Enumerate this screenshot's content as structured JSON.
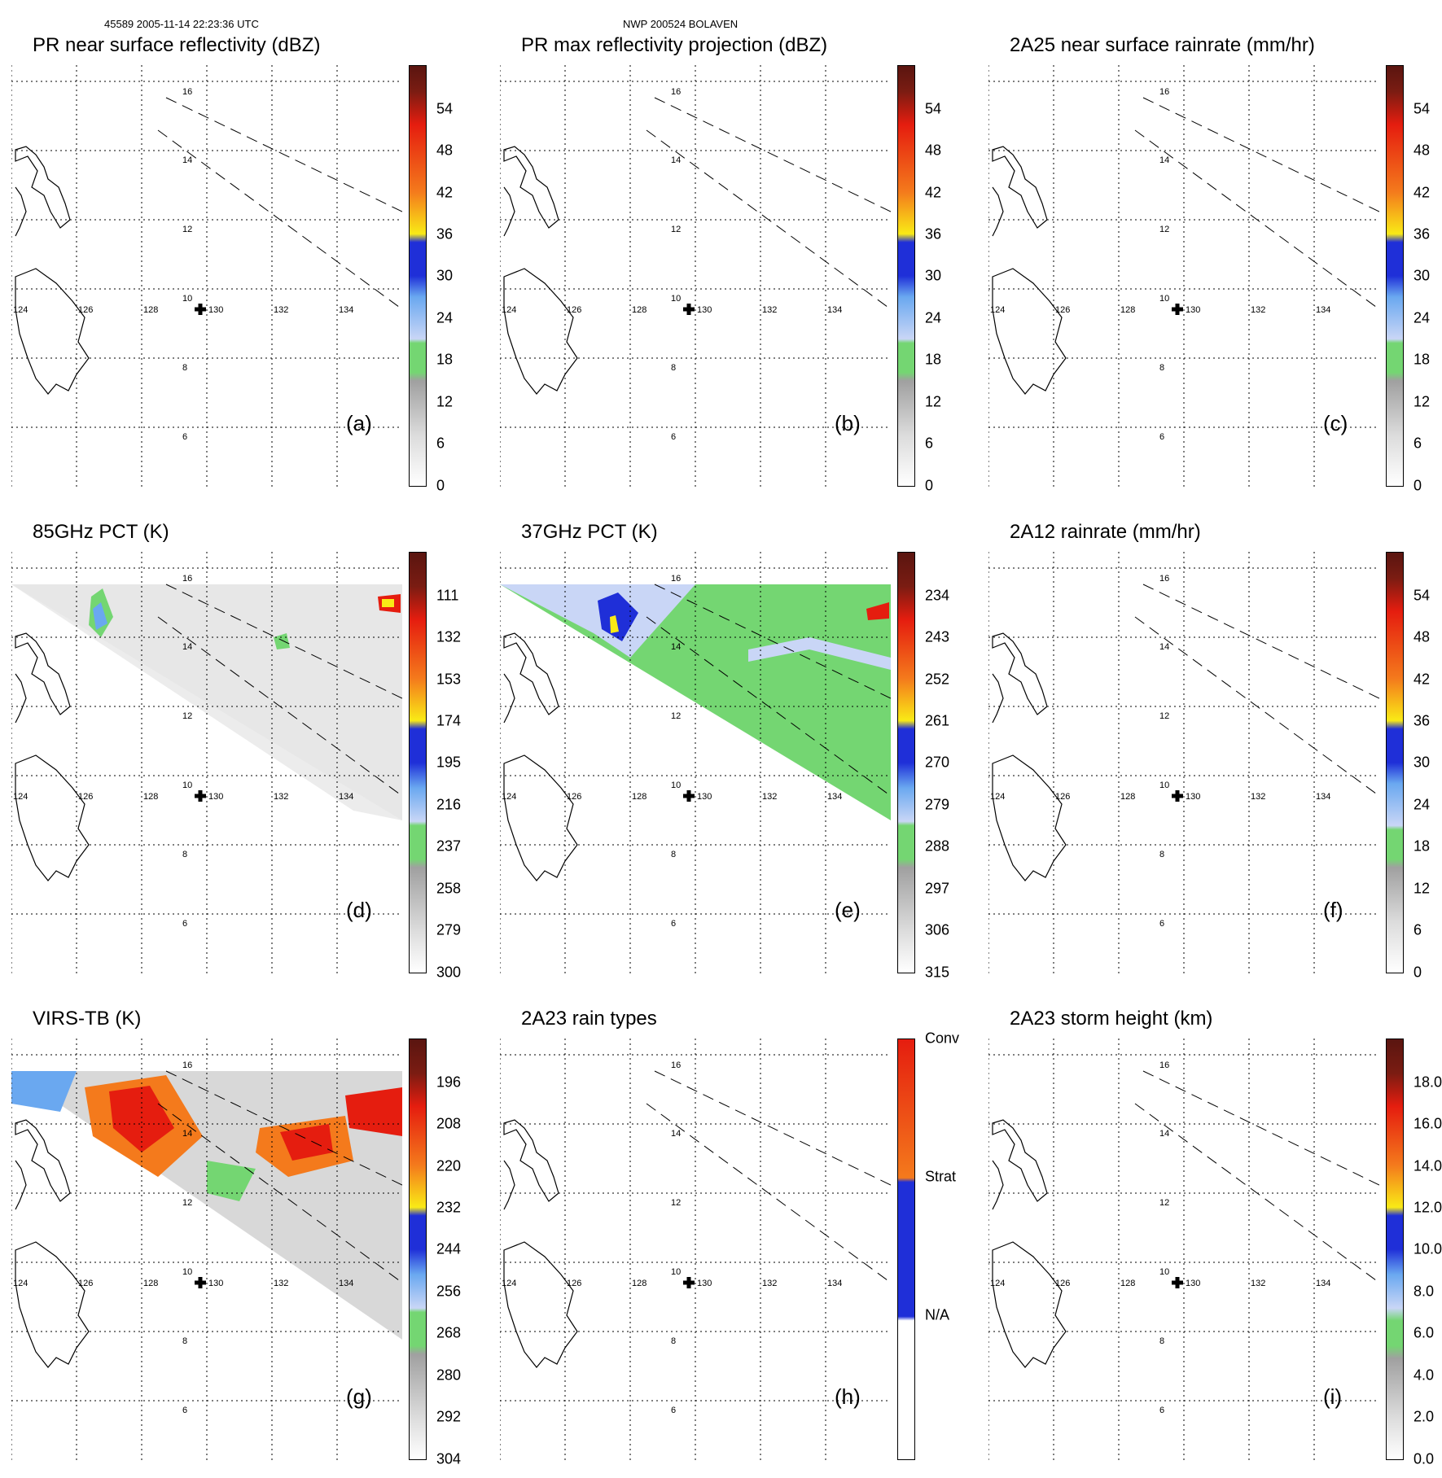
{
  "header": {
    "orbit": "45589 2005-11-14 22:23:36 UTC",
    "storm": "NWP 200524 BOLAVEN"
  },
  "colors": {
    "dark_red": "#7a1c12",
    "red": "#e51d0f",
    "orange": "#f47a1c",
    "yellow": "#f9ea16",
    "blue": "#1f2fd8",
    "light_blue": "#6aa8f0",
    "pale_blue": "#c9d6f6",
    "green": "#74d672",
    "gray": "#a0a0a0",
    "light_gray": "#dcdcdc"
  },
  "map": {
    "lon_labels": [
      "124",
      "126",
      "128",
      "130",
      "132",
      "134"
    ],
    "lat_labels": [
      "16",
      "14",
      "12",
      "10",
      "8",
      "6"
    ]
  },
  "panels": [
    {
      "id": "a",
      "title": "PR near surface reflectivity (dBZ)",
      "label": "(a)",
      "colorbar": {
        "type": "dbz",
        "ticks": [
          "54",
          "48",
          "42",
          "36",
          "30",
          "24",
          "18",
          "12",
          "6",
          "0"
        ]
      }
    },
    {
      "id": "b",
      "title": "PR max reflectivity projection (dBZ)",
      "label": "(b)",
      "colorbar": {
        "type": "dbz",
        "ticks": [
          "54",
          "48",
          "42",
          "36",
          "30",
          "24",
          "18",
          "12",
          "6",
          "0"
        ]
      }
    },
    {
      "id": "c",
      "title": "2A25 near surface rainrate (mm/hr)",
      "label": "(c)",
      "colorbar": {
        "type": "rain",
        "ticks": [
          "54",
          "48",
          "42",
          "36",
          "30",
          "24",
          "18",
          "12",
          "6",
          "0"
        ]
      }
    },
    {
      "id": "d",
      "title": "85GHz PCT (K)",
      "label": "(d)",
      "colorbar": {
        "type": "pct",
        "ticks": [
          "111",
          "132",
          "153",
          "174",
          "195",
          "216",
          "237",
          "258",
          "279",
          "300"
        ]
      }
    },
    {
      "id": "e",
      "title": "37GHz PCT (K)",
      "label": "(e)",
      "colorbar": {
        "type": "pct",
        "ticks": [
          "234",
          "243",
          "252",
          "261",
          "270",
          "279",
          "288",
          "297",
          "306",
          "315"
        ]
      }
    },
    {
      "id": "f",
      "title": "2A12 rainrate (mm/hr)",
      "label": "(f)",
      "colorbar": {
        "type": "rain",
        "ticks": [
          "54",
          "48",
          "42",
          "36",
          "30",
          "24",
          "18",
          "12",
          "6",
          "0"
        ]
      }
    },
    {
      "id": "g",
      "title": "VIRS-TB (K)",
      "label": "(g)",
      "colorbar": {
        "type": "pct",
        "ticks": [
          "196",
          "208",
          "220",
          "232",
          "244",
          "256",
          "268",
          "280",
          "292",
          "304"
        ]
      }
    },
    {
      "id": "h",
      "title": "2A23 rain types",
      "label": "(h)",
      "colorbar": {
        "type": "raintype",
        "ticks": [
          "Conv",
          "Strat",
          "N/A"
        ]
      }
    },
    {
      "id": "i",
      "title": "2A23 storm height (km)",
      "label": "(i)",
      "colorbar": {
        "type": "height",
        "ticks": [
          "18.0",
          "16.0",
          "14.0",
          "12.0",
          "10.0",
          "8.0",
          "6.0",
          "4.0",
          "2.0",
          "0.0"
        ]
      }
    }
  ]
}
